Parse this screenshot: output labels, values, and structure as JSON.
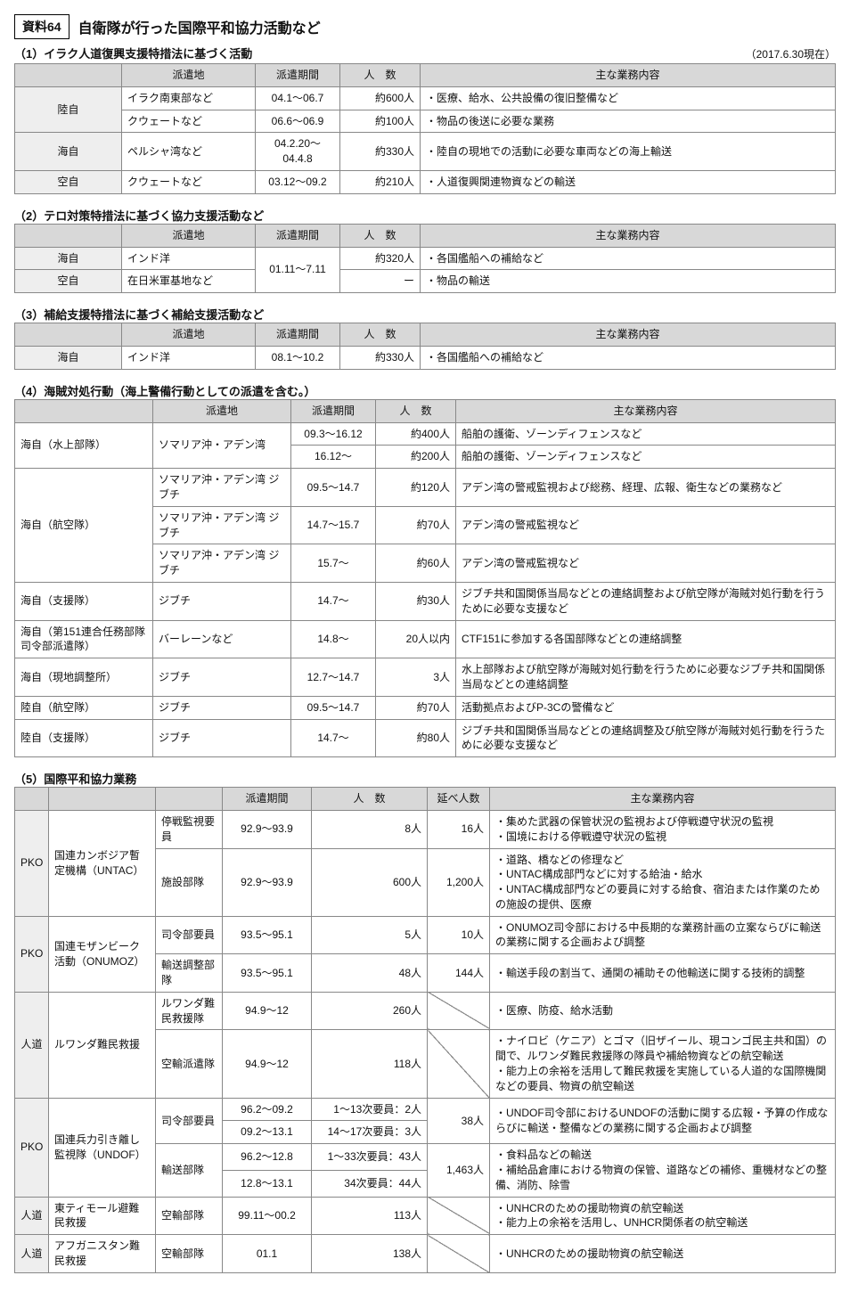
{
  "doc": {
    "badge": "資料64",
    "title": "自衛隊が行った国際平和協力活動など",
    "asof": "（2017.6.30現在）"
  },
  "colhead": {
    "place": "派遣地",
    "period": "派遣期間",
    "count": "人　数",
    "countSp": "人　数",
    "ext": "延べ人数",
    "content": "主な業務内容"
  },
  "sections": [
    {
      "title": "（1）イラク人道復興支援特措法に基づく活動",
      "rows": [
        {
          "force": "陸自",
          "place": "イラク南東部など",
          "period": "04.1～06.7",
          "count": "約600人",
          "content": "・医療、給水、公共設備の復旧整備など"
        },
        {
          "force": "",
          "place": "クウェートなど",
          "period": "06.6～06.9",
          "count": "約100人",
          "content": "・物品の後送に必要な業務"
        },
        {
          "force": "海自",
          "place": "ペルシャ湾など",
          "period": "04.2.20～04.4.8",
          "count": "約330人",
          "content": "・陸自の現地での活動に必要な車両などの海上輸送"
        },
        {
          "force": "空自",
          "place": "クウェートなど",
          "period": "03.12～09.2",
          "count": "約210人",
          "content": "・人道復興関連物資などの輸送"
        }
      ]
    },
    {
      "title": "（2）テロ対策特措法に基づく協力支援活動など",
      "rows": [
        {
          "force": "海自",
          "place": "インド洋",
          "period": "01.11～7.11",
          "count": "約320人",
          "content": "・各国艦船への補給など"
        },
        {
          "force": "空自",
          "place": "在日米軍基地など",
          "period": "",
          "count": "ー",
          "content": "・物品の輸送"
        }
      ]
    },
    {
      "title": "（3）補給支援特措法に基づく補給支援活動など",
      "rows": [
        {
          "force": "海自",
          "place": "インド洋",
          "period": "08.1～10.2",
          "count": "約330人",
          "content": "・各国艦船への補給など"
        }
      ]
    }
  ],
  "section4": {
    "title": "（4）海賊対処行動（海上警備行動としての派遣を含む。）",
    "rows": [
      {
        "force": "海自（水上部隊）",
        "place": "ソマリア沖・アデン湾",
        "period": "09.3～16.12",
        "count": "約400人",
        "content": "船舶の護衛、ゾーンディフェンスなど"
      },
      {
        "force": "",
        "place": "",
        "period": "16.12～",
        "count": "約200人",
        "content": "船舶の護衛、ゾーンディフェンスなど"
      },
      {
        "force": "海自（航空隊）",
        "place": "ソマリア沖・アデン湾 ジブチ",
        "period": "09.5～14.7",
        "count": "約120人",
        "content": "アデン湾の警戒監視および総務、経理、広報、衛生などの業務など"
      },
      {
        "force": "",
        "place": "ソマリア沖・アデン湾 ジブチ",
        "period": "14.7～15.7",
        "count": "約70人",
        "content": "アデン湾の警戒監視など"
      },
      {
        "force": "",
        "place": "ソマリア沖・アデン湾 ジブチ",
        "period": "15.7～",
        "count": "約60人",
        "content": "アデン湾の警戒監視など"
      },
      {
        "force": "海自（支援隊）",
        "place": "ジブチ",
        "period": "14.7～",
        "count": "約30人",
        "content": "ジブチ共和国関係当局などとの連絡調整および航空隊が海賊対処行動を行うために必要な支援など"
      },
      {
        "force": "海自（第151連合任務部隊司令部派遣隊）",
        "place": "バーレーンなど",
        "period": "14.8～",
        "count": "20人以内",
        "content": "CTF151に参加する各国部隊などとの連絡調整"
      },
      {
        "force": "海自（現地調整所）",
        "place": "ジブチ",
        "period": "12.7～14.7",
        "count": "3人",
        "content": "水上部隊および航空隊が海賊対処行動を行うために必要なジブチ共和国関係当局などとの連絡調整"
      },
      {
        "force": "陸自（航空隊）",
        "place": "ジブチ",
        "period": "09.5～14.7",
        "count": "約70人",
        "content": "活動拠点およびP-3Cの警備など"
      },
      {
        "force": "陸自（支援隊）",
        "place": "ジブチ",
        "period": "14.7～",
        "count": "約80人",
        "content": "ジブチ共和国関係当局などとの連絡調整及び航空隊が海賊対処行動を行うために必要な支援など"
      }
    ]
  },
  "section5": {
    "title": "（5）国際平和協力業務",
    "labels": {
      "pko": "PKO",
      "hum": "人道"
    },
    "groups": [
      {
        "cat": "PKO",
        "mission": "国連カンボジア暫定機構（UNTAC）",
        "rows": [
          {
            "unit": "停戦監視要員",
            "period": "92.9～93.9",
            "count": "8人",
            "ext": "16人",
            "content": "・集めた武器の保管状況の監視および停戦遵守状況の監視\n・国境における停戦遵守状況の監視"
          },
          {
            "unit": "施設部隊",
            "period": "92.9～93.9",
            "count": "600人",
            "ext": "1,200人",
            "content": "・道路、橋などの修理など\n・UNTAC構成部門などに対する給油・給水\n・UNTAC構成部門などの要員に対する給食、宿泊または作業のための施設の提供、医療"
          }
        ]
      },
      {
        "cat": "PKO",
        "mission": "国連モザンビーク活動（ONUMOZ）",
        "rows": [
          {
            "unit": "司令部要員",
            "period": "93.5～95.1",
            "count": "5人",
            "ext": "10人",
            "content": "・ONUMOZ司令部における中長期的な業務計画の立案ならびに輸送の業務に関する企画および調整"
          },
          {
            "unit": "輸送調整部隊",
            "period": "93.5～95.1",
            "count": "48人",
            "ext": "144人",
            "content": "・輸送手段の割当て、通関の補助その他輸送に関する技術的調整"
          }
        ]
      },
      {
        "cat": "人道",
        "mission": "ルワンダ難民救援",
        "rows": [
          {
            "unit": "ルワンダ難民救援隊",
            "period": "94.9～12",
            "count": "260人",
            "ext": null,
            "content": "・医療、防疫、給水活動"
          },
          {
            "unit": "空輸派遣隊",
            "period": "94.9～12",
            "count": "118人",
            "ext": null,
            "content": "・ナイロビ（ケニア）とゴマ（旧ザイール、現コンゴ民主共和国）の間で、ルワンダ難民救援隊の隊員や補給物資などの航空輸送\n・能力上の余裕を活用して難民救援を実施している人道的な国際機関などの要員、物資の航空輸送"
          }
        ]
      },
      {
        "cat": "PKO",
        "mission": "国連兵力引き離し監視隊（UNDOF）",
        "rows": [
          {
            "unit": "司令部要員",
            "unitSpan": 2,
            "period": "96.2～09.2",
            "count": "1～13次要員：2人",
            "ext": "38人",
            "extSpan": 2,
            "content": "・UNDOF司令部におけるUNDOFの活動に関する広報・予算の作成ならびに輸送・整備などの業務に関する企画および調整",
            "contentSpan": 2
          },
          {
            "period": "09.2～13.1",
            "count": "14～17次要員：3人"
          },
          {
            "unit": "輸送部隊",
            "unitSpan": 2,
            "period": "96.2～12.8",
            "count": "1～33次要員：43人",
            "ext": "1,463人",
            "extSpan": 2,
            "content": "・食料品などの輸送\n・補給品倉庫における物資の保管、道路などの補修、重機材などの整備、消防、除雪",
            "contentSpan": 2
          },
          {
            "period": "12.8～13.1",
            "count": "34次要員：44人"
          }
        ]
      },
      {
        "cat": "人道",
        "mission": "東ティモール避難民救援",
        "rows": [
          {
            "unit": "空輸部隊",
            "period": "99.11～00.2",
            "count": "113人",
            "ext": null,
            "content": "・UNHCRのための援助物資の航空輸送\n・能力上の余裕を活用し、UNHCR関係者の航空輸送"
          }
        ]
      },
      {
        "cat": "人道",
        "mission": "アフガニスタン難民救援",
        "rows": [
          {
            "unit": "空輸部隊",
            "period": "01.1",
            "count": "138人",
            "ext": null,
            "content": "・UNHCRのための援助物資の航空輸送"
          }
        ]
      }
    ]
  }
}
